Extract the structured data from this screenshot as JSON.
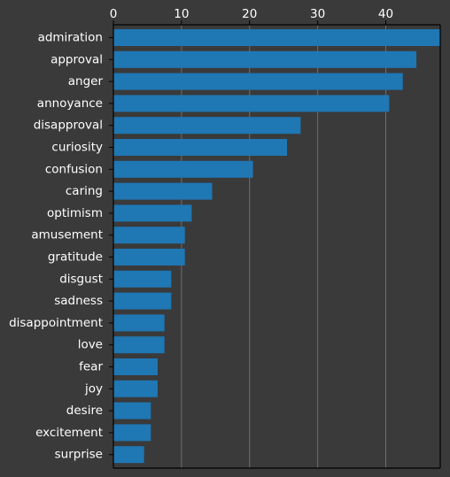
{
  "chart_data": {
    "type": "bar",
    "orientation": "horizontal",
    "categories": [
      "admiration",
      "approval",
      "anger",
      "annoyance",
      "disapproval",
      "curiosity",
      "confusion",
      "caring",
      "optimism",
      "amusement",
      "gratitude",
      "disgust",
      "sadness",
      "disappointment",
      "love",
      "fear",
      "joy",
      "desire",
      "excitement",
      "surprise"
    ],
    "values": [
      48,
      44.5,
      42.5,
      40.5,
      27.5,
      25.5,
      20.5,
      14.5,
      11.5,
      10.5,
      10.5,
      8.5,
      8.5,
      7.5,
      7.5,
      6.5,
      6.5,
      5.5,
      5.5,
      4.5
    ],
    "xlim": [
      0,
      48
    ],
    "xticks": [
      0,
      10,
      20,
      30,
      40
    ],
    "x_axis_position": "top",
    "grid": "vertical",
    "colors": {
      "background": "#3a3a3a",
      "bar": "#1f77b4",
      "grid": "#6e6e6e",
      "axis": "#000000",
      "text": "#ffffff"
    }
  }
}
